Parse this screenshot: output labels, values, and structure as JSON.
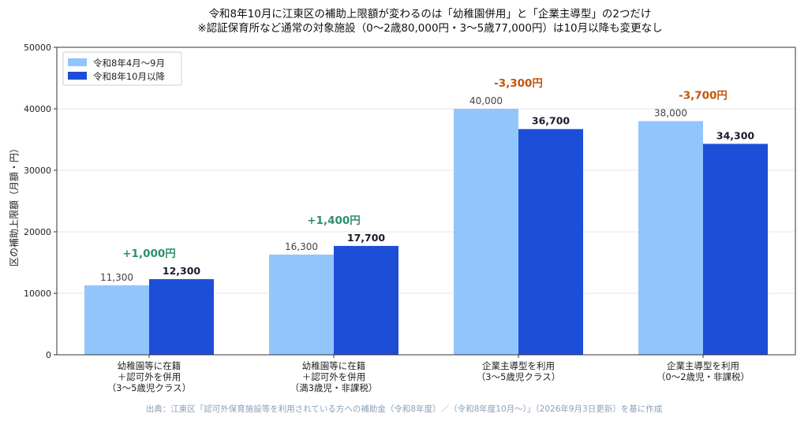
{
  "chart_data": {
    "type": "bar",
    "title_line1": "令和8年10月に江東区の補助上限額が変わるのは「幼稚園併用」と「企業主導型」の2つだけ",
    "title_line2": "※認証保育所など通常の対象施設（0〜2歳80,000円・3〜5歳77,000円）は10月以降も変更なし",
    "ylabel": "区の補助上限額（月額・円）",
    "xlabel": "",
    "ylim": [
      0,
      50000
    ],
    "yticks": [
      "0",
      "10000",
      "20000",
      "30000",
      "40000",
      "50000"
    ],
    "grid": true,
    "legend_position": "top-left",
    "categories": [
      [
        "幼稚園等に在籍",
        "＋認可外を併用",
        "（3〜5歳児クラス）"
      ],
      [
        "幼稚園等に在籍",
        "＋認可外を併用",
        "（満3歳児・非課税）"
      ],
      [
        "企業主導型を利用",
        "（3〜5歳児クラス）"
      ],
      [
        "企業主導型を利用",
        "（0〜2歳児・非課税）"
      ]
    ],
    "series": [
      {
        "name": "令和8年4月〜9月",
        "values": [
          11300,
          16300,
          40000,
          38000
        ],
        "labels": [
          "11,300",
          "16,300",
          "40,000",
          "38,000"
        ],
        "color": "#93c5fd"
      },
      {
        "name": "令和8年10月以降",
        "values": [
          12300,
          17700,
          36700,
          34300
        ],
        "labels": [
          "12,300",
          "17,700",
          "36,700",
          "34,300"
        ],
        "color": "#1d4ed8"
      }
    ],
    "changes": [
      "+1,000円",
      "+1,400円",
      "-3,300円",
      "-3,700円"
    ],
    "change_colors": [
      "#2f8f6f",
      "#2f8f6f",
      "#c2560c",
      "#c2560c"
    ],
    "source": "出典：江東区「認可外保育施設等を利用されている方への補助金（令和8年度）／（令和8年度10月〜）」（2026年9月3日更新）を基に作成"
  }
}
